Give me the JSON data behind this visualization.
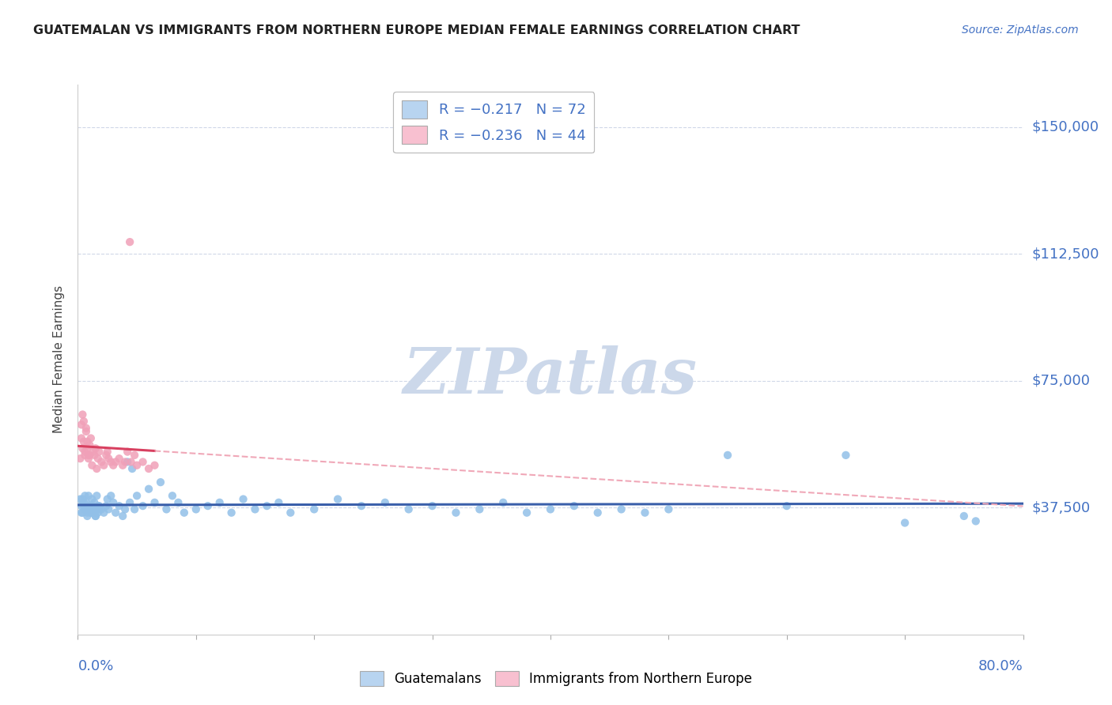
{
  "title": "GUATEMALAN VS IMMIGRANTS FROM NORTHERN EUROPE MEDIAN FEMALE EARNINGS CORRELATION CHART",
  "source": "Source: ZipAtlas.com",
  "ylabel": "Median Female Earnings",
  "xlim": [
    0.0,
    0.8
  ],
  "ylim": [
    0,
    162500
  ],
  "ytick_vals": [
    0,
    37500,
    75000,
    112500,
    150000
  ],
  "ytick_labels": [
    "",
    "$37,500",
    "$75,000",
    "$112,500",
    "$150,000"
  ],
  "legend_labels": [
    "Guatemalans",
    "Immigrants from Northern Europe"
  ],
  "blue_color": "#92c0e8",
  "pink_color": "#f0a0b8",
  "trend_blue_color": "#3a5faa",
  "trend_pink_color": "#d84060",
  "trend_dashed_color": "#f0a8b8",
  "watermark_color": "#ccd8ea",
  "grid_color": "#d0d8e8",
  "blue_scatter": [
    [
      0.002,
      40000
    ],
    [
      0.003,
      38000
    ],
    [
      0.004,
      36000
    ],
    [
      0.005,
      39000
    ],
    [
      0.006,
      41000
    ],
    [
      0.007,
      37000
    ],
    [
      0.008,
      35000
    ],
    [
      0.009,
      41000
    ],
    [
      0.01,
      38000
    ],
    [
      0.011,
      36000
    ],
    [
      0.012,
      40000
    ],
    [
      0.013,
      37000
    ],
    [
      0.014,
      39000
    ],
    [
      0.015,
      35000
    ],
    [
      0.016,
      41000
    ],
    [
      0.017,
      38000
    ],
    [
      0.018,
      37000
    ],
    [
      0.003,
      36000
    ],
    [
      0.004,
      40000
    ],
    [
      0.005,
      38000
    ],
    [
      0.006,
      37000
    ],
    [
      0.007,
      39000
    ],
    [
      0.008,
      36000
    ],
    [
      0.009,
      38000
    ],
    [
      0.01,
      37000
    ],
    [
      0.011,
      36000
    ],
    [
      0.012,
      38000
    ],
    [
      0.013,
      37000
    ],
    [
      0.014,
      36000
    ],
    [
      0.015,
      35000
    ],
    [
      0.016,
      37000
    ],
    [
      0.017,
      36000
    ],
    [
      0.018,
      38000
    ],
    [
      0.02,
      37000
    ],
    [
      0.022,
      36000
    ],
    [
      0.024,
      38000
    ],
    [
      0.025,
      40000
    ],
    [
      0.026,
      37000
    ],
    [
      0.028,
      41000
    ],
    [
      0.03,
      39000
    ],
    [
      0.032,
      36000
    ],
    [
      0.035,
      38000
    ],
    [
      0.038,
      35000
    ],
    [
      0.04,
      37000
    ],
    [
      0.042,
      51000
    ],
    [
      0.044,
      39000
    ],
    [
      0.046,
      49000
    ],
    [
      0.048,
      37000
    ],
    [
      0.05,
      41000
    ],
    [
      0.055,
      38000
    ],
    [
      0.06,
      43000
    ],
    [
      0.065,
      39000
    ],
    [
      0.07,
      45000
    ],
    [
      0.075,
      37000
    ],
    [
      0.08,
      41000
    ],
    [
      0.085,
      39000
    ],
    [
      0.09,
      36000
    ],
    [
      0.1,
      37000
    ],
    [
      0.11,
      38000
    ],
    [
      0.12,
      39000
    ],
    [
      0.13,
      36000
    ],
    [
      0.14,
      40000
    ],
    [
      0.15,
      37000
    ],
    [
      0.16,
      38000
    ],
    [
      0.17,
      39000
    ],
    [
      0.18,
      36000
    ],
    [
      0.2,
      37000
    ],
    [
      0.22,
      40000
    ],
    [
      0.24,
      38000
    ],
    [
      0.26,
      39000
    ],
    [
      0.28,
      37000
    ],
    [
      0.3,
      38000
    ],
    [
      0.32,
      36000
    ],
    [
      0.34,
      37000
    ],
    [
      0.36,
      39000
    ],
    [
      0.38,
      36000
    ],
    [
      0.4,
      37000
    ],
    [
      0.42,
      38000
    ],
    [
      0.44,
      36000
    ],
    [
      0.46,
      37000
    ],
    [
      0.48,
      36000
    ],
    [
      0.5,
      37000
    ],
    [
      0.55,
      53000
    ],
    [
      0.6,
      38000
    ],
    [
      0.65,
      53000
    ],
    [
      0.7,
      33000
    ],
    [
      0.75,
      35000
    ],
    [
      0.76,
      33500
    ]
  ],
  "pink_scatter": [
    [
      0.002,
      52000
    ],
    [
      0.003,
      58000
    ],
    [
      0.004,
      55000
    ],
    [
      0.005,
      63000
    ],
    [
      0.006,
      53000
    ],
    [
      0.007,
      60000
    ],
    [
      0.008,
      55000
    ],
    [
      0.009,
      52000
    ],
    [
      0.01,
      53000
    ],
    [
      0.011,
      58000
    ],
    [
      0.012,
      50000
    ],
    [
      0.013,
      54000
    ],
    [
      0.003,
      62000
    ],
    [
      0.004,
      65000
    ],
    [
      0.005,
      57000
    ],
    [
      0.006,
      54000
    ],
    [
      0.007,
      61000
    ],
    [
      0.008,
      57000
    ],
    [
      0.009,
      53000
    ],
    [
      0.01,
      56000
    ],
    [
      0.014,
      53000
    ],
    [
      0.015,
      55000
    ],
    [
      0.016,
      49000
    ],
    [
      0.017,
      52000
    ],
    [
      0.018,
      54000
    ],
    [
      0.02,
      51000
    ],
    [
      0.022,
      50000
    ],
    [
      0.024,
      53000
    ],
    [
      0.025,
      54000
    ],
    [
      0.026,
      52000
    ],
    [
      0.028,
      51000
    ],
    [
      0.03,
      50000
    ],
    [
      0.032,
      51000
    ],
    [
      0.035,
      52000
    ],
    [
      0.038,
      50000
    ],
    [
      0.04,
      51000
    ],
    [
      0.042,
      54000
    ],
    [
      0.044,
      116000
    ],
    [
      0.045,
      51000
    ],
    [
      0.048,
      53000
    ],
    [
      0.05,
      50000
    ],
    [
      0.055,
      51000
    ],
    [
      0.06,
      49000
    ],
    [
      0.065,
      50000
    ]
  ]
}
